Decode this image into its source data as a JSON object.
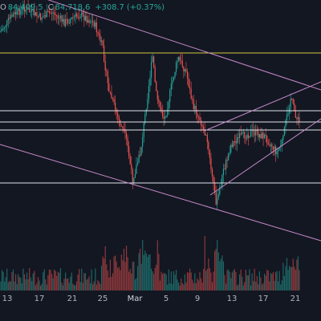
{
  "legend": {
    "open_label": "O",
    "open_value": "84,409.5",
    "close_label": "C",
    "close_value": "84,718.6",
    "change": "+308.7 (+0.37%)",
    "color_up": "#26a69a"
  },
  "colors": {
    "background": "#131722",
    "candle_up": "#26a69a",
    "candle_down": "#ef5350",
    "trendline": "#c58ac9",
    "horizontal_level": "#e0e3eb",
    "yellow_level": "#d4c43a"
  },
  "chart_data": {
    "type": "candlestick",
    "x_ticks": [
      "13",
      "17",
      "21",
      "25",
      "Mar",
      "5",
      "9",
      "13",
      "17",
      "21"
    ],
    "grid": false,
    "volume_pane": true
  }
}
